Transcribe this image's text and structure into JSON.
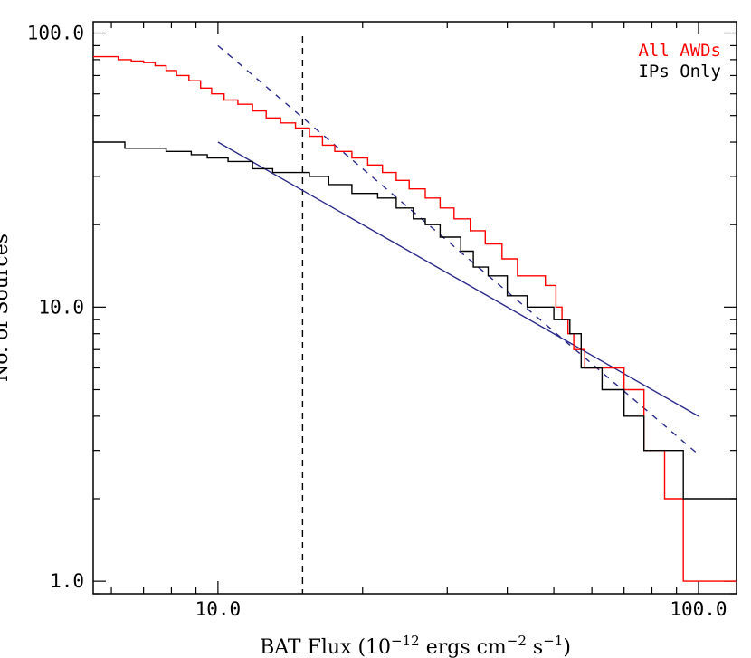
{
  "chart_data": {
    "type": "line",
    "xlabel": "BAT Flux (10^-12 ergs cm^-2 s^-1)",
    "ylabel": "No. of Sources",
    "xscale": "log",
    "yscale": "log",
    "xlim": [
      5.5,
      120
    ],
    "ylim": [
      0.9,
      110
    ],
    "x_ticks": [
      {
        "value": 10,
        "label": "10.0"
      },
      {
        "value": 100,
        "label": "100.0"
      }
    ],
    "y_ticks": [
      {
        "value": 1,
        "label": "1.0"
      },
      {
        "value": 10,
        "label": "10.0"
      },
      {
        "value": 100,
        "label": "100.0"
      }
    ],
    "legend_position": "top-right",
    "series": [
      {
        "name": "All AWDs",
        "color": "#ff0000",
        "style": "step",
        "x": [
          5.5,
          6.2,
          6.6,
          7.0,
          7.4,
          7.8,
          8.2,
          8.7,
          9.2,
          9.7,
          10.3,
          11.0,
          11.8,
          12.6,
          13.5,
          14.5,
          15.5,
          16.5,
          17.5,
          19.0,
          20.5,
          22.0,
          23.5,
          25.0,
          27.0,
          29.0,
          31.0,
          33.5,
          36.0,
          39.0,
          42.0,
          45.0,
          48.0,
          50.5,
          52.0,
          53.5,
          55.0,
          58.0,
          63.0,
          70.0,
          77.0,
          85.0,
          93.0,
          100.0,
          120.0
        ],
        "values": [
          82,
          80,
          79,
          78,
          76,
          73,
          70,
          67,
          63,
          60,
          57,
          55,
          52,
          49,
          47,
          45,
          42,
          39,
          37,
          35,
          33,
          31,
          29,
          27,
          25,
          23,
          21,
          19,
          17,
          15,
          13,
          13,
          12,
          10,
          9,
          8,
          7,
          6,
          6,
          5,
          3,
          2,
          1,
          1,
          1
        ]
      },
      {
        "name": "IPs Only",
        "color": "#000000",
        "style": "step",
        "x": [
          5.5,
          6.4,
          7.8,
          8.8,
          9.5,
          10.5,
          11.8,
          13.0,
          15.5,
          17.0,
          19.0,
          21.5,
          23.5,
          25.5,
          27.0,
          29.0,
          32.0,
          34.0,
          36.5,
          40.0,
          44.0,
          50.0,
          54.0,
          57.0,
          63.0,
          70.0,
          77.0,
          93.0,
          120.0
        ],
        "values": [
          40,
          38,
          37,
          36,
          35,
          34,
          32,
          31,
          30,
          28,
          26,
          25,
          23,
          21,
          20,
          18,
          16,
          14,
          13,
          11,
          10,
          9,
          8,
          6,
          5,
          4,
          3,
          2,
          1
        ]
      }
    ],
    "fits": [
      {
        "color": "#2a2a8a",
        "style": "dashed",
        "x": [
          10,
          100
        ],
        "values": [
          90,
          2.9
        ]
      },
      {
        "color": "#2a2a8a",
        "style": "solid",
        "x": [
          10,
          100
        ],
        "values": [
          40,
          4.0
        ]
      }
    ],
    "reference_lines": [
      {
        "axis": "x",
        "value": 15,
        "color": "#000000",
        "style": "dashed"
      }
    ]
  }
}
